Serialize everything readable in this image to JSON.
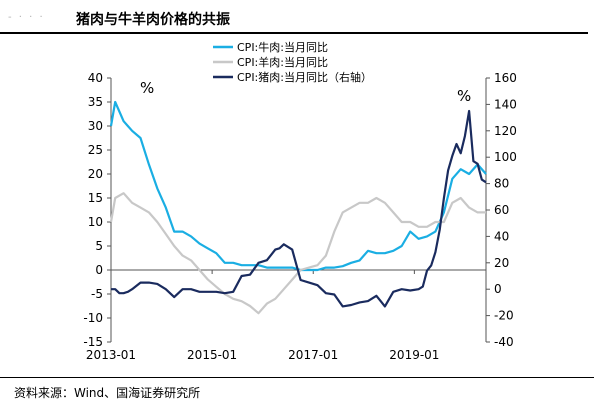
{
  "header": {
    "title": "猪肉与牛羊肉价格的共振"
  },
  "footer": {
    "source": "资料来源：Wind、国海证券研究所"
  },
  "chart_data": {
    "type": "line",
    "title": "猪肉与牛羊肉价格的共振",
    "left_axis": {
      "unit_label": "%",
      "ylim": [
        -15,
        40
      ],
      "ticks": [
        -15,
        -10,
        -5,
        0,
        5,
        10,
        15,
        20,
        25,
        30,
        35,
        40
      ]
    },
    "right_axis": {
      "unit_label": "%",
      "ylim": [
        -40,
        160
      ],
      "ticks": [
        -40,
        -20,
        0,
        20,
        40,
        60,
        80,
        100,
        120,
        140,
        160
      ]
    },
    "x_axis": {
      "tick_labels": [
        "2013-01",
        "2015-01",
        "2017-01",
        "2019-01"
      ],
      "range": [
        "2013-01",
        "2020-06"
      ]
    },
    "grid": false,
    "legend": "top-center",
    "series": [
      {
        "name": "CPI:牛肉:当月同比",
        "axis": "left",
        "color": "#1aaee3",
        "x": [
          "2013-01",
          "2013-02",
          "2013-04",
          "2013-06",
          "2013-08",
          "2013-10",
          "2013-12",
          "2014-02",
          "2014-04",
          "2014-06",
          "2014-08",
          "2014-10",
          "2014-12",
          "2015-02",
          "2015-04",
          "2015-06",
          "2015-08",
          "2015-10",
          "2015-12",
          "2016-02",
          "2016-04",
          "2016-06",
          "2016-08",
          "2016-10",
          "2016-12",
          "2017-02",
          "2017-04",
          "2017-06",
          "2017-08",
          "2017-10",
          "2017-12",
          "2018-02",
          "2018-04",
          "2018-06",
          "2018-08",
          "2018-10",
          "2018-12",
          "2019-02",
          "2019-04",
          "2019-06",
          "2019-08",
          "2019-10",
          "2019-12",
          "2020-02",
          "2020-04",
          "2020-06"
        ],
        "values": [
          30,
          35,
          31,
          29,
          27.5,
          22,
          17,
          13,
          8,
          8,
          7,
          5.5,
          4.5,
          3.5,
          1.5,
          1.5,
          1,
          1,
          1,
          0.5,
          0.5,
          0.5,
          0.5,
          0,
          0,
          0,
          0.5,
          0.5,
          0.8,
          1.5,
          2,
          4,
          3.5,
          3.5,
          4,
          5,
          8,
          6.5,
          7,
          8,
          12,
          19,
          21,
          20,
          22,
          20
        ]
      },
      {
        "name": "CPI:羊肉:当月同比",
        "axis": "left",
        "color": "#c8c8c8",
        "x": [
          "2013-01",
          "2013-02",
          "2013-04",
          "2013-06",
          "2013-08",
          "2013-10",
          "2013-12",
          "2014-02",
          "2014-04",
          "2014-06",
          "2014-08",
          "2014-10",
          "2014-12",
          "2015-02",
          "2015-04",
          "2015-06",
          "2015-08",
          "2015-10",
          "2015-12",
          "2016-02",
          "2016-04",
          "2016-06",
          "2016-08",
          "2016-10",
          "2016-12",
          "2017-02",
          "2017-04",
          "2017-06",
          "2017-08",
          "2017-10",
          "2017-12",
          "2018-02",
          "2018-04",
          "2018-06",
          "2018-08",
          "2018-10",
          "2018-12",
          "2019-02",
          "2019-04",
          "2019-06",
          "2019-08",
          "2019-10",
          "2019-12",
          "2020-02",
          "2020-04",
          "2020-06"
        ],
        "values": [
          10,
          15,
          16,
          14,
          13,
          12,
          10,
          7.5,
          5,
          3,
          2,
          0,
          -2,
          -3.5,
          -5,
          -6,
          -6.5,
          -7.5,
          -9,
          -7,
          -6,
          -4,
          -2,
          0,
          0.5,
          1,
          3,
          8,
          12,
          13,
          14,
          14,
          15,
          14,
          12,
          10,
          10,
          9,
          9,
          10,
          10,
          14,
          15,
          13,
          12,
          12
        ]
      },
      {
        "name": "CPI:猪肉:当月同比（右轴）",
        "axis": "right",
        "color": "#1a2b5e",
        "x": [
          "2013-01",
          "2013-02",
          "2013-03",
          "2013-04",
          "2013-05",
          "2013-06",
          "2013-08",
          "2013-10",
          "2013-12",
          "2014-02",
          "2014-04",
          "2014-06",
          "2014-08",
          "2014-10",
          "2014-12",
          "2015-02",
          "2015-04",
          "2015-06",
          "2015-08",
          "2015-10",
          "2015-12",
          "2016-02",
          "2016-04",
          "2016-05",
          "2016-06",
          "2016-08",
          "2016-10",
          "2016-12",
          "2017-02",
          "2017-04",
          "2017-06",
          "2017-08",
          "2017-10",
          "2017-12",
          "2018-02",
          "2018-04",
          "2018-06",
          "2018-08",
          "2018-10",
          "2018-12",
          "2019-02",
          "2019-03",
          "2019-04",
          "2019-05",
          "2019-06",
          "2019-07",
          "2019-08",
          "2019-09",
          "2019-10",
          "2019-11",
          "2019-12",
          "2020-01",
          "2020-02",
          "2020-03",
          "2020-04",
          "2020-05",
          "2020-06"
        ],
        "values": [
          0,
          0,
          -3,
          -3,
          -2,
          0,
          5,
          5,
          4,
          0,
          -6,
          0,
          0,
          -2,
          -2,
          -2,
          -3,
          -2,
          10,
          11,
          20,
          22,
          30,
          31,
          34,
          30,
          7,
          5,
          3,
          -3,
          -4,
          -13,
          -12,
          -10,
          -9,
          -5,
          -13,
          -2,
          0,
          -1,
          0,
          2,
          14,
          18,
          28,
          45,
          69,
          90,
          101,
          110,
          103,
          116,
          135,
          97,
          95,
          83,
          81
        ]
      }
    ]
  }
}
